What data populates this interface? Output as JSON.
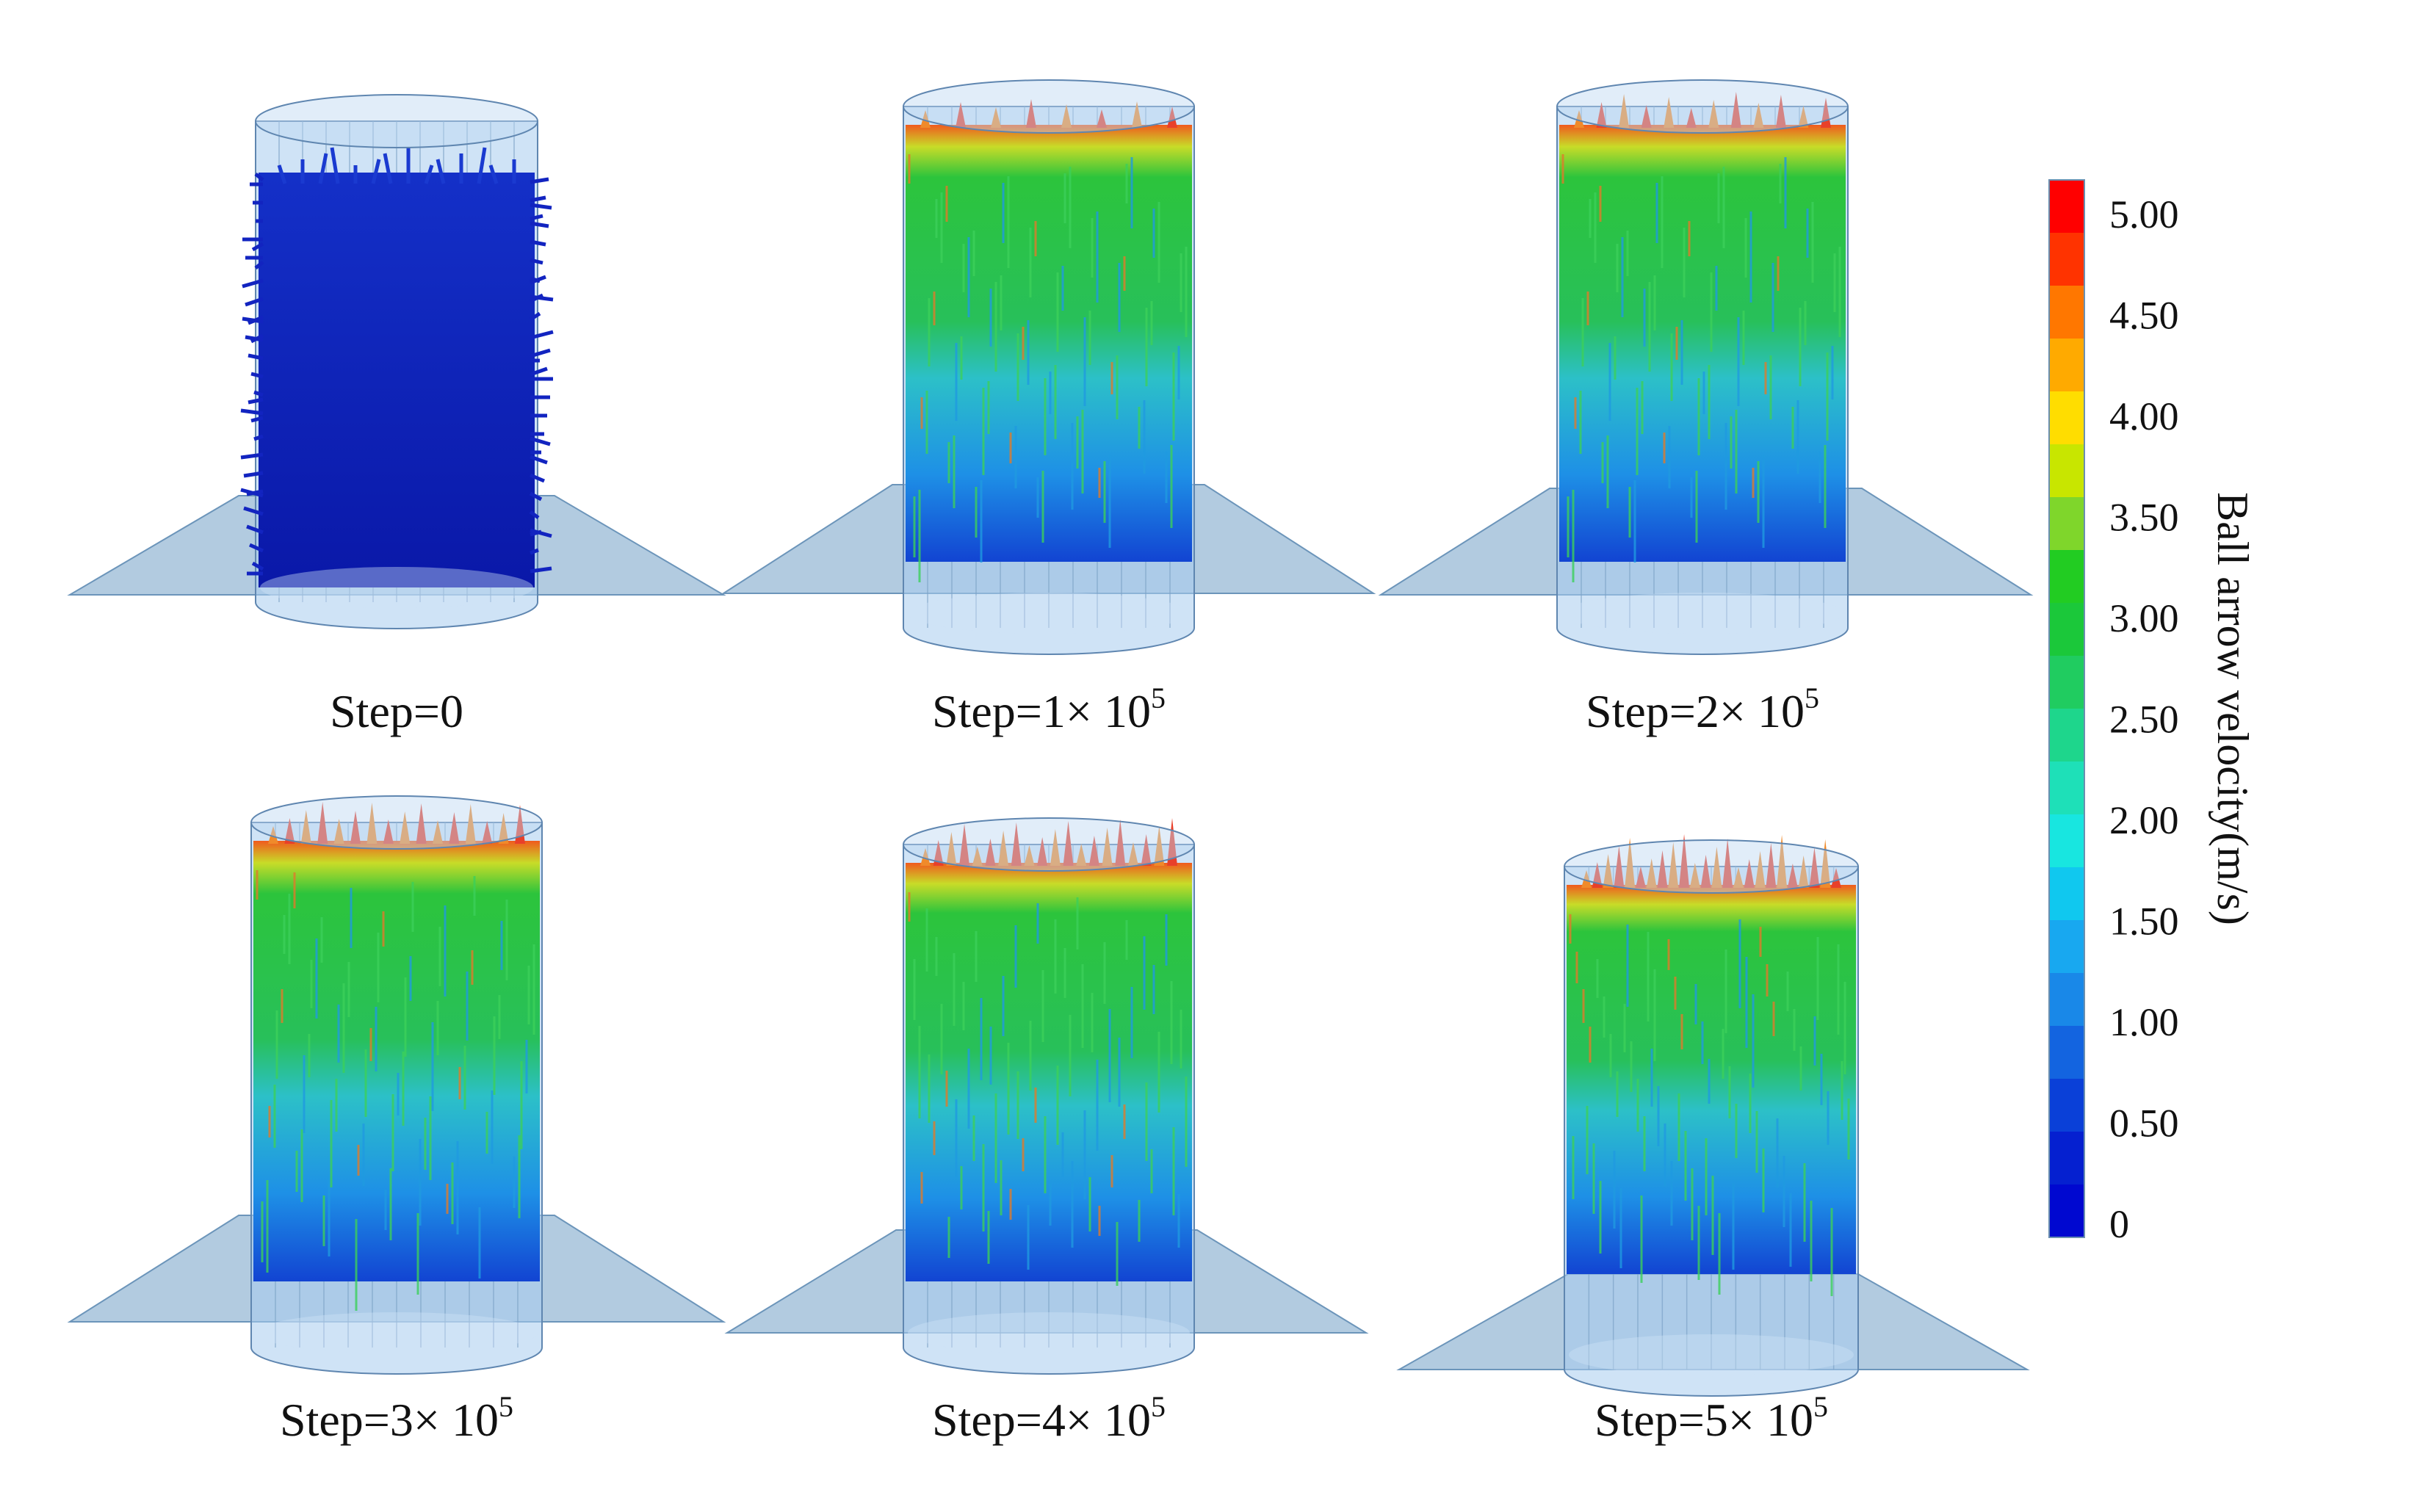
{
  "panels": [
    {
      "label": "Step=0",
      "state": "initial"
    },
    {
      "label_main": "Step=1×",
      "label_base": "10",
      "label_exp": "5",
      "state": "flow"
    },
    {
      "label_main": "Step=2×",
      "label_base": "10",
      "label_exp": "5",
      "state": "flow"
    },
    {
      "label_main": "Step=3×",
      "label_base": "10",
      "label_exp": "5",
      "state": "flow"
    },
    {
      "label_main": "Step=4×",
      "label_base": "10",
      "label_exp": "5",
      "state": "flow"
    },
    {
      "label_main": "Step=5×",
      "label_base": "10",
      "label_exp": "5",
      "state": "flow"
    }
  ],
  "colorbar": {
    "title": "Ball arrow velocity(m/s)",
    "ticks": [
      "5.00",
      "4.50",
      "4.00",
      "3.50",
      "3.00",
      "2.50",
      "2.00",
      "1.50",
      "1.00",
      "0.50",
      "0"
    ],
    "colors": [
      "#ff0000",
      "#ff3300",
      "#ff7700",
      "#ffaa00",
      "#ffdd00",
      "#c8e600",
      "#7fd62b",
      "#22cc22",
      "#1bc83a",
      "#20cc60",
      "#1ed68c",
      "#1ee0b8",
      "#18e6e0",
      "#10c8ef",
      "#18a8f0",
      "#1988e8",
      "#1364e0",
      "#0a40d8",
      "#0520d0",
      "#0008d0"
    ]
  }
}
